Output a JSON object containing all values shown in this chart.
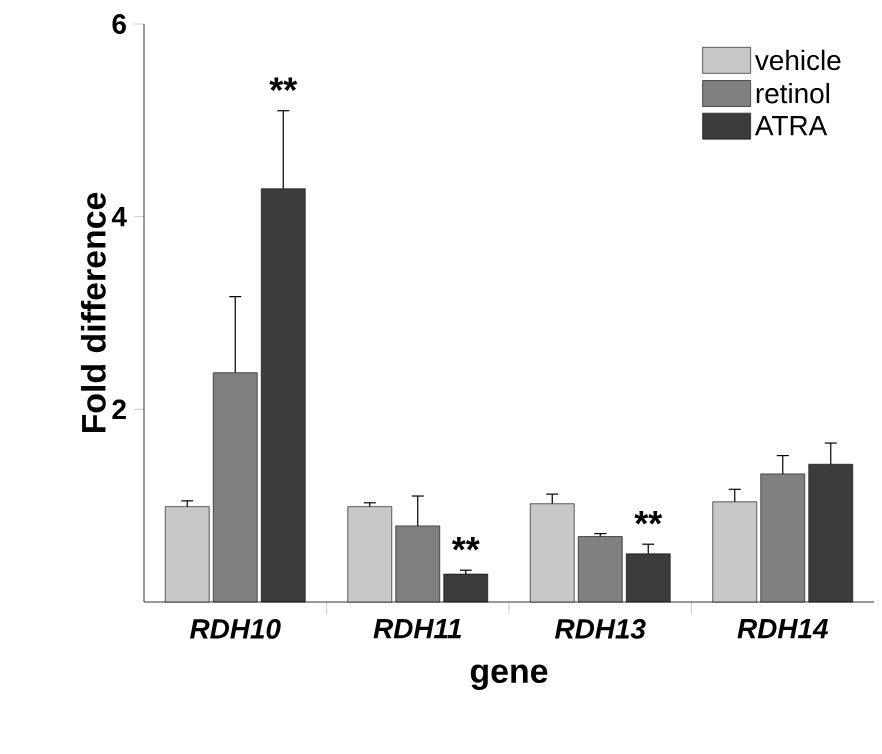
{
  "chart_data": {
    "type": "bar",
    "xlabel": "gene",
    "ylabel": "Fold difference",
    "categories": [
      "RDH10",
      "RDH11",
      "RDH13",
      "RDH14"
    ],
    "series": [
      {
        "name": "vehicle",
        "color": "#c8c8c8",
        "values": [
          0.99,
          0.99,
          1.02,
          1.04
        ],
        "errors": [
          0.06,
          0.04,
          0.1,
          0.13
        ]
      },
      {
        "name": "retinol",
        "color": "#808080",
        "values": [
          2.38,
          0.79,
          0.68,
          1.33
        ],
        "errors": [
          0.79,
          0.31,
          0.03,
          0.19
        ]
      },
      {
        "name": "ATRA",
        "color": "#3c3c3c",
        "values": [
          4.29,
          0.29,
          0.5,
          1.43
        ],
        "errors": [
          0.81,
          0.04,
          0.1,
          0.22
        ]
      }
    ],
    "ylim": [
      0,
      6
    ],
    "yticks": [
      2,
      4,
      6
    ],
    "legend": "top right",
    "annotations": [
      "**",
      "**",
      "**"
    ]
  }
}
